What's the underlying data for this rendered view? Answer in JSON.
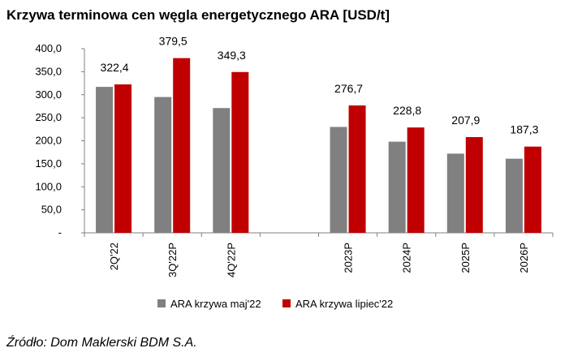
{
  "title": "Krzywa terminowa cen węgla energetycznego ARA [USD/t]",
  "source": "Źródło: Dom Maklerski BDM S.A.",
  "chart_data": {
    "type": "bar",
    "categories": [
      "2Q'22",
      "3Q'22P",
      "4Q'22P",
      "",
      "2023P",
      "2024P",
      "2025P",
      "2026P"
    ],
    "series": [
      {
        "name": "ARA krzywa maj'22",
        "color": "#808080",
        "values": [
          317,
          295,
          271,
          null,
          230,
          198,
          172,
          161
        ]
      },
      {
        "name": "ARA krzywa lipiec'22",
        "color": "#c00000",
        "values": [
          322.4,
          379.5,
          349.3,
          null,
          276.7,
          228.8,
          207.9,
          187.3
        ]
      }
    ],
    "data_labels": [
      "322,4",
      "379,5",
      "349,3",
      "",
      "276,7",
      "228,8",
      "207,9",
      "187,3"
    ],
    "yticks": [
      "-",
      "50,0",
      "100,0",
      "150,0",
      "200,0",
      "250,0",
      "300,0",
      "350,0",
      "400,0"
    ],
    "ylim": [
      0,
      400
    ],
    "grid": false,
    "legend_position": "bottom"
  }
}
